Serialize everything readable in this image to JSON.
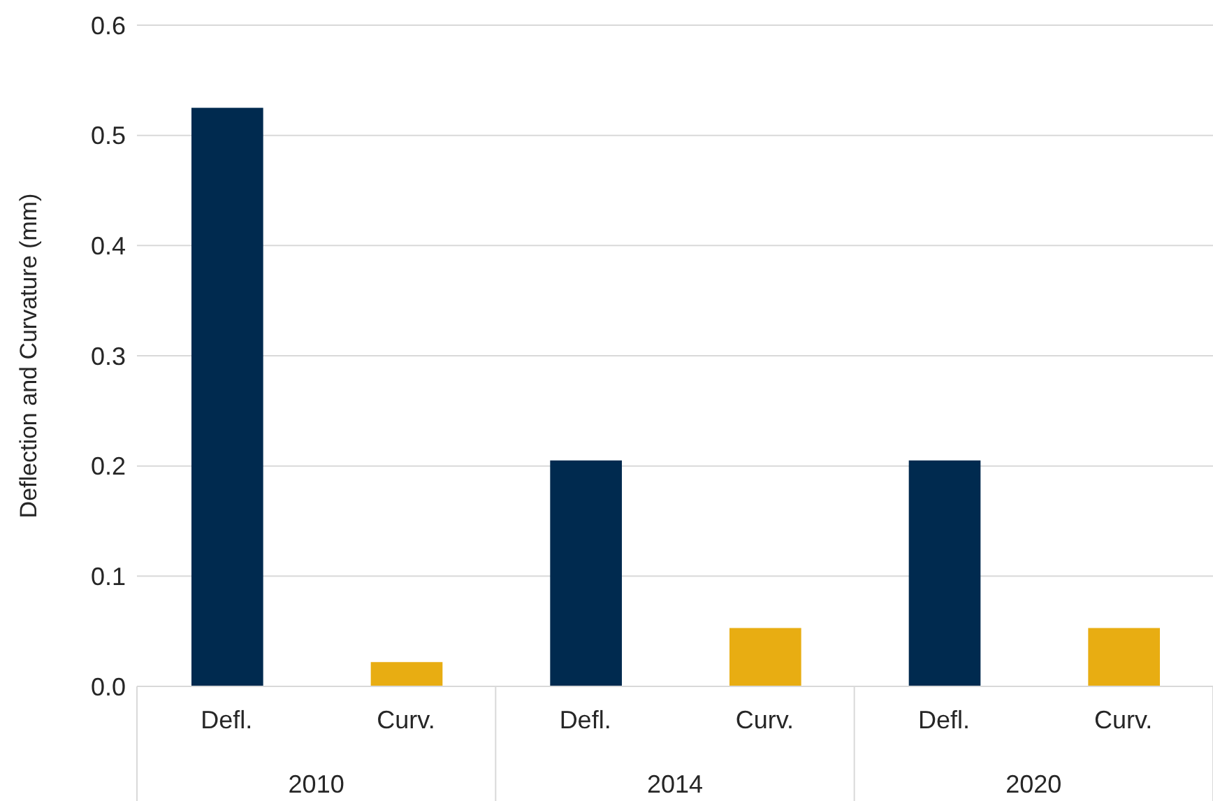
{
  "chart_data": {
    "type": "bar",
    "ylabel": "Deflection and Curvature (mm)",
    "categories": [
      "2010",
      "2014",
      "2020"
    ],
    "series": [
      {
        "name": "Defl.",
        "color": "#002a4f",
        "values": [
          0.525,
          0.205,
          0.205
        ]
      },
      {
        "name": "Curv.",
        "color": "#e8ad12",
        "values": [
          0.022,
          0.053,
          0.053
        ]
      }
    ],
    "ylim": [
      0,
      0.6
    ],
    "yticks": [
      {
        "value": 0,
        "label": "0.0"
      },
      {
        "value": 0.1,
        "label": "0.1"
      },
      {
        "value": 0.2,
        "label": "0.2"
      },
      {
        "value": 0.3,
        "label": "0.3"
      },
      {
        "value": 0.4,
        "label": "0.4"
      },
      {
        "value": 0.5,
        "label": "0.5"
      },
      {
        "value": 0.6,
        "label": "0.6"
      }
    ],
    "grid": "y"
  }
}
